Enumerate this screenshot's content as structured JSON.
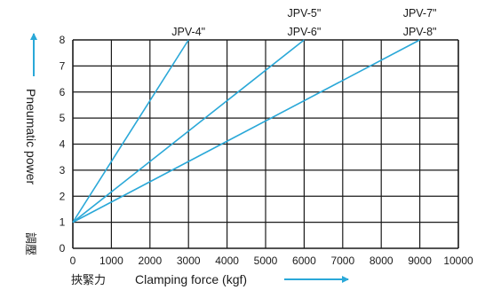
{
  "chart_data": {
    "type": "line",
    "xlim": [
      0,
      10000
    ],
    "ylim": [
      0,
      8
    ],
    "x_ticks": [
      "0",
      "1000",
      "2000",
      "3000",
      "4000",
      "5000",
      "6000",
      "7000",
      "8000",
      "9000",
      "10000"
    ],
    "y_ticks": [
      "0",
      "1",
      "2",
      "3",
      "4",
      "5",
      "6",
      "7",
      "8"
    ],
    "xlabel_cjk": "挾緊力",
    "xlabel": "Clamping force (kgf)",
    "ylabel": "Pneumatic power",
    "ylabel_cjk": "調壓",
    "grid": true,
    "line_color": "#2aa8d8",
    "series": [
      {
        "labels": [
          "JPV-4\""
        ],
        "points": [
          [
            0,
            1
          ],
          [
            3000,
            8
          ]
        ]
      },
      {
        "labels": [
          "JPV-5\"",
          "JPV-6\""
        ],
        "points": [
          [
            0,
            1
          ],
          [
            6000,
            8
          ]
        ]
      },
      {
        "labels": [
          "JPV-7\"",
          "JPV-8\""
        ],
        "points": [
          [
            0,
            1
          ],
          [
            9000,
            8
          ]
        ]
      }
    ]
  }
}
